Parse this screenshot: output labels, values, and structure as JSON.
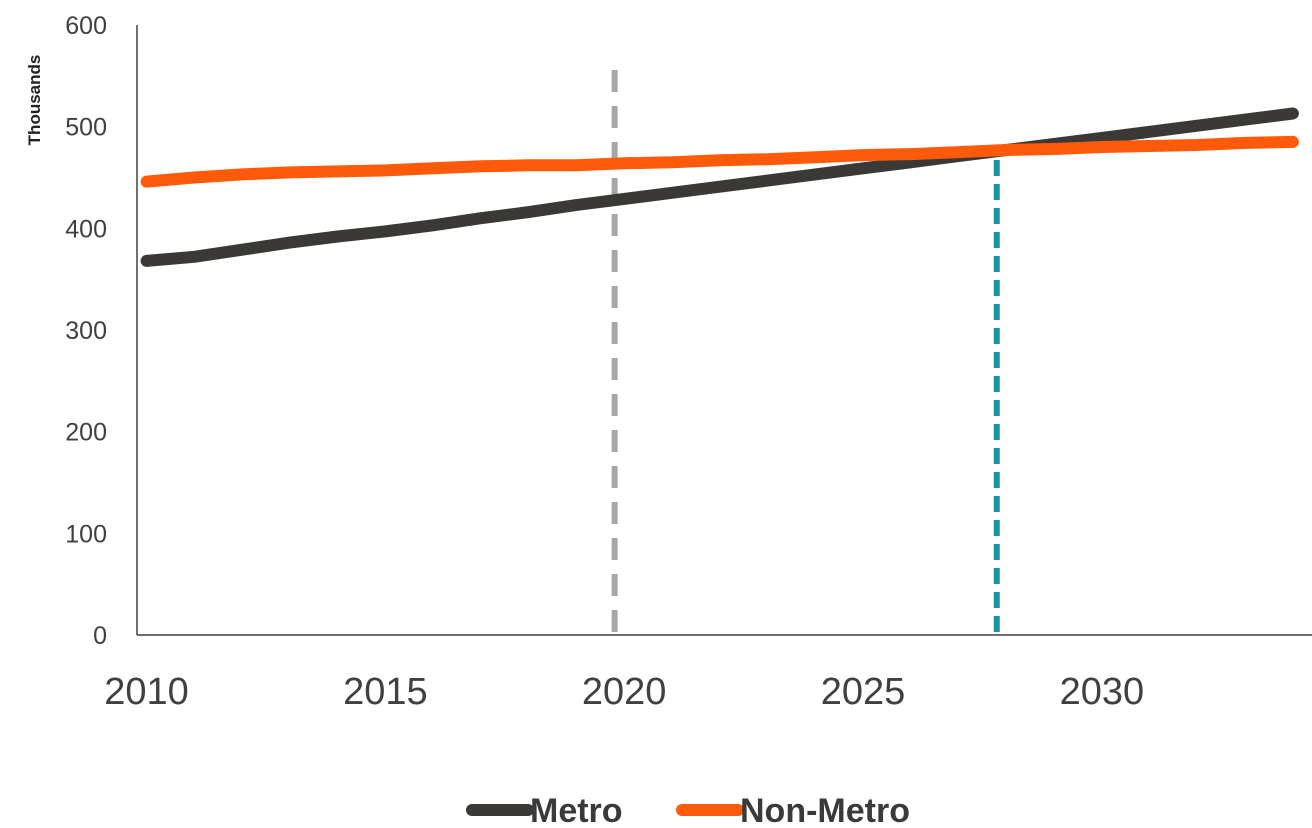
{
  "chart_data": {
    "type": "line",
    "ylabel": "Thousands",
    "xlabel": "",
    "ylim": [
      0,
      600
    ],
    "xlim": [
      2009.8,
      2034.4
    ],
    "yticks": [
      0,
      100,
      200,
      300,
      400,
      500,
      600
    ],
    "xticks": [
      2010,
      2015,
      2020,
      2025,
      2030
    ],
    "grid": false,
    "legend_position": "bottom-center",
    "series": [
      {
        "name": "Metro",
        "color": "#3b3935",
        "x": [
          2010,
          2011,
          2012,
          2013,
          2014,
          2015,
          2016,
          2017,
          2018,
          2019,
          2020,
          2021,
          2022,
          2023,
          2024,
          2025,
          2026,
          2027,
          2028,
          2029,
          2030,
          2031,
          2032,
          2033,
          2034
        ],
        "y": [
          368,
          372,
          379,
          386,
          392,
          397,
          403,
          410,
          416,
          423,
          429,
          435,
          441,
          447,
          453,
          459,
          465,
          471,
          477,
          483,
          489,
          495,
          501,
          507,
          513
        ]
      },
      {
        "name": "Non-Metro",
        "color": "#ff5a0a",
        "x": [
          2010,
          2011,
          2012,
          2013,
          2014,
          2015,
          2016,
          2017,
          2018,
          2019,
          2020,
          2021,
          2022,
          2023,
          2024,
          2025,
          2026,
          2027,
          2028,
          2029,
          2030,
          2031,
          2032,
          2033,
          2034
        ],
        "y": [
          446,
          450,
          453,
          455,
          456,
          457,
          459,
          461,
          462,
          462,
          464,
          465,
          467,
          468,
          470,
          472,
          473,
          475,
          477,
          478,
          480,
          481,
          482,
          484,
          485
        ]
      }
    ],
    "reference_lines": [
      {
        "x": 2019.8,
        "color": "#a6a6a6",
        "style": "dashed"
      },
      {
        "x": 2027.8,
        "color": "#1797a6",
        "style": "dashed"
      }
    ]
  }
}
